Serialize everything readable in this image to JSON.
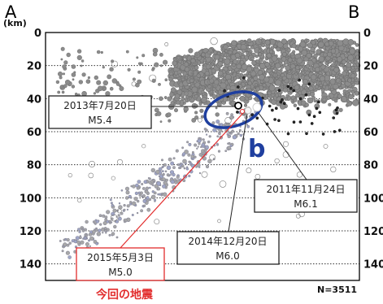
{
  "chart_data": {
    "type": "scatter",
    "corner_labels": {
      "left": "A",
      "right": "B"
    },
    "y_unit": "(km)",
    "y_ticks": [
      0,
      20,
      40,
      60,
      80,
      100,
      120,
      140
    ],
    "ylim": [
      0,
      150
    ],
    "y_inverted": true,
    "grid": "horizontal-dotted",
    "annotations": [
      {
        "date": "2013年7月20日",
        "magnitude": "M5.4",
        "depth": 44,
        "color": "#222222"
      },
      {
        "date": "2011年11月24日",
        "magnitude": "M6.1",
        "depth": 43,
        "color": "#222222"
      },
      {
        "date": "2014年12月20日",
        "magnitude": "M6.0",
        "depth": 45,
        "color": "#222222"
      },
      {
        "date": "2015年5月3日",
        "magnitude": "M5.0",
        "depth": 46,
        "color": "#e22d2d"
      }
    ],
    "cluster_label": "b",
    "cluster_color": "#1f3f9f",
    "footer_label": "今回の地震",
    "footer_color": "#e22d2d",
    "count_label": "N=3511",
    "point_color": "#8c8c8c"
  }
}
